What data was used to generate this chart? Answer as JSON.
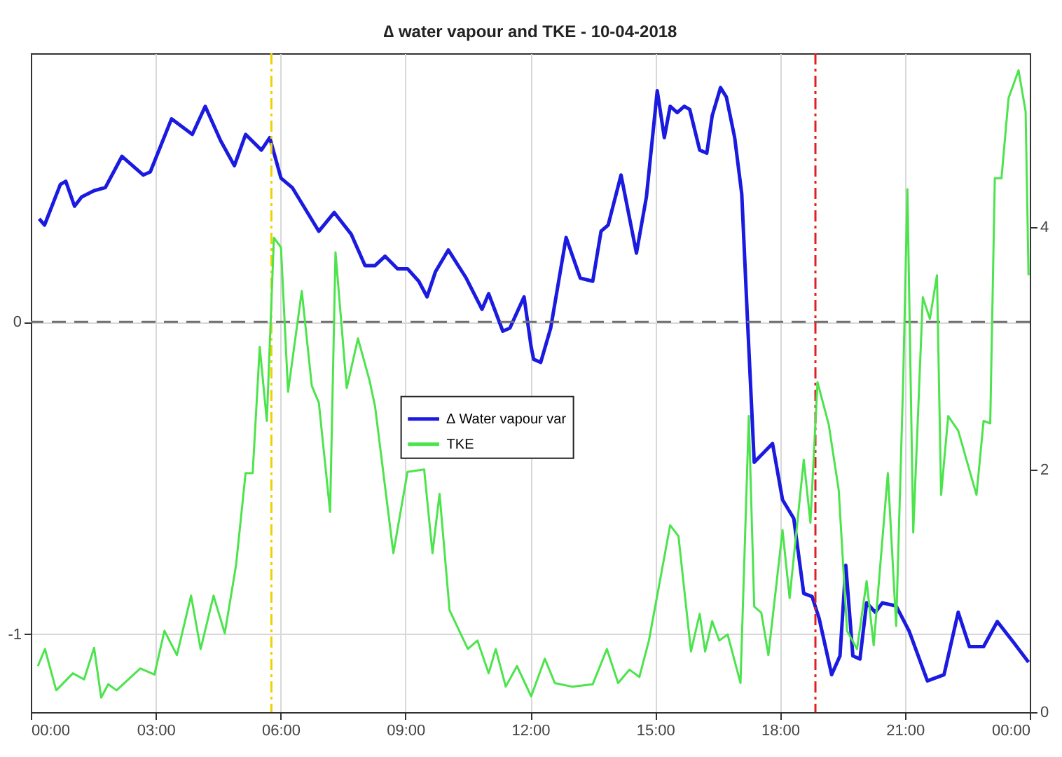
{
  "chart_data": {
    "type": "line",
    "title": "∆ water vapour and TKE - 10-04-2018",
    "xlim": [
      0,
      24
    ],
    "xticks": [
      {
        "value": 0,
        "label": "00:00"
      },
      {
        "value": 3,
        "label": "03:00"
      },
      {
        "value": 6,
        "label": "06:00"
      },
      {
        "value": 9,
        "label": "09:00"
      },
      {
        "value": 12,
        "label": "12:00"
      },
      {
        "value": 15,
        "label": "15:00"
      },
      {
        "value": 18,
        "label": "18:00"
      },
      {
        "value": 21,
        "label": "21:00"
      },
      {
        "value": 24,
        "label": "00:00"
      }
    ],
    "ylim": [
      -1.25,
      0.86
    ],
    "yticks": [
      -1,
      0
    ],
    "y2lim": [
      0,
      5.43
    ],
    "y2ticks": [
      0,
      2,
      4
    ],
    "grid": true,
    "legend": "center",
    "line_style": "solid",
    "series": [
      {
        "name": "∆ Water vapour var",
        "color": "#1a1ae0",
        "x": [
          0.2,
          0.33,
          0.71,
          0.84,
          1.05,
          1.22,
          1.52,
          1.79,
          2.19,
          2.7,
          2.87,
          3.38,
          3.88,
          4.19,
          4.56,
          4.89,
          5.16,
          5.54,
          5.74,
          6.01,
          6.28,
          6.92,
          7.29,
          7.7,
          8.03,
          8.27,
          8.51,
          8.81,
          9.05,
          9.32,
          9.52,
          9.72,
          10.03,
          10.46,
          10.84,
          11.0,
          11.34,
          11.51,
          11.85,
          12.02,
          12.08,
          12.25,
          12.49,
          12.86,
          13.2,
          13.5,
          13.7,
          13.87,
          14.18,
          14.55,
          14.79,
          15.05,
          15.22,
          15.36,
          15.53,
          15.7,
          15.83,
          16.07,
          16.24,
          16.37,
          16.57,
          16.71,
          16.91,
          17.08,
          17.22,
          17.38,
          17.82,
          18.06,
          18.33,
          18.57,
          18.77,
          18.94,
          19.24,
          19.44,
          19.58,
          19.75,
          19.92,
          20.08,
          20.29,
          20.46,
          20.79,
          21.1,
          21.54,
          21.94,
          22.28,
          22.55,
          22.89,
          23.22,
          23.63,
          23.97
        ],
        "values": [
          0.33,
          0.31,
          0.44,
          0.45,
          0.37,
          0.4,
          0.42,
          0.43,
          0.53,
          0.47,
          0.48,
          0.65,
          0.6,
          0.69,
          0.58,
          0.5,
          0.6,
          0.55,
          0.59,
          0.46,
          0.43,
          0.29,
          0.35,
          0.28,
          0.18,
          0.18,
          0.21,
          0.17,
          0.17,
          0.13,
          0.08,
          0.16,
          0.23,
          0.14,
          0.04,
          0.09,
          -0.03,
          -0.02,
          0.08,
          -0.08,
          -0.12,
          -0.13,
          -0.02,
          0.27,
          0.14,
          0.13,
          0.29,
          0.31,
          0.47,
          0.22,
          0.4,
          0.74,
          0.59,
          0.69,
          0.67,
          0.69,
          0.68,
          0.55,
          0.54,
          0.66,
          0.75,
          0.72,
          0.59,
          0.41,
          0.0,
          -0.45,
          -0.39,
          -0.57,
          -0.63,
          -0.87,
          -0.88,
          -0.95,
          -1.13,
          -1.07,
          -0.78,
          -1.07,
          -1.08,
          -0.9,
          -0.93,
          -0.9,
          -0.91,
          -0.99,
          -1.15,
          -1.13,
          -0.93,
          -1.04,
          -1.04,
          -0.96,
          -1.03,
          -1.09
        ]
      },
      {
        "name": "TKE",
        "color": "#4ce44c",
        "axis": "y2",
        "x": [
          0.17,
          0.34,
          0.61,
          1.01,
          1.28,
          1.52,
          1.69,
          1.86,
          2.06,
          2.63,
          2.97,
          3.21,
          3.51,
          3.85,
          4.08,
          4.39,
          4.66,
          4.93,
          5.16,
          5.33,
          5.5,
          5.67,
          5.84,
          6.01,
          6.18,
          6.51,
          6.75,
          6.92,
          7.19,
          7.32,
          7.59,
          7.86,
          8.14,
          8.27,
          8.71,
          9.05,
          9.45,
          9.65,
          9.82,
          10.06,
          10.5,
          10.73,
          11.0,
          11.17,
          11.41,
          11.68,
          12.02,
          12.35,
          12.59,
          13.0,
          13.5,
          13.84,
          14.11,
          14.38,
          14.62,
          14.85,
          15.36,
          15.56,
          15.86,
          16.07,
          16.2,
          16.37,
          16.54,
          16.74,
          17.05,
          17.25,
          17.38,
          17.55,
          17.72,
          18.06,
          18.23,
          18.57,
          18.73,
          18.9,
          19.17,
          19.41,
          19.61,
          19.85,
          20.08,
          20.25,
          20.59,
          20.79,
          20.96,
          21.06,
          21.2,
          21.43,
          21.6,
          21.77,
          21.87,
          22.04,
          22.28,
          22.72,
          22.89,
          23.05,
          23.16,
          23.32,
          23.49,
          23.73,
          23.9,
          23.97
        ],
        "values": [
          0.38,
          0.52,
          0.18,
          0.32,
          0.27,
          0.53,
          0.12,
          0.23,
          0.18,
          0.36,
          0.31,
          0.67,
          0.47,
          0.96,
          0.52,
          0.96,
          0.65,
          1.21,
          1.97,
          1.97,
          3.01,
          2.4,
          3.91,
          3.83,
          2.64,
          3.47,
          2.69,
          2.55,
          1.65,
          3.79,
          2.67,
          3.08,
          2.73,
          2.52,
          1.31,
          1.98,
          2.0,
          1.31,
          1.8,
          0.84,
          0.52,
          0.59,
          0.32,
          0.52,
          0.21,
          0.38,
          0.13,
          0.44,
          0.24,
          0.21,
          0.23,
          0.52,
          0.24,
          0.35,
          0.29,
          0.59,
          1.54,
          1.45,
          0.5,
          0.81,
          0.5,
          0.75,
          0.59,
          0.64,
          0.24,
          2.44,
          0.87,
          0.82,
          0.47,
          1.5,
          0.94,
          2.08,
          1.56,
          2.72,
          2.37,
          1.83,
          0.67,
          0.52,
          1.08,
          0.55,
          1.97,
          0.71,
          2.75,
          4.31,
          1.48,
          3.42,
          3.24,
          3.6,
          1.79,
          2.44,
          2.32,
          1.79,
          2.4,
          2.38,
          4.4,
          4.4,
          5.06,
          5.29,
          4.95,
          3.6
        ]
      }
    ],
    "ref_lines": [
      {
        "axis": "y",
        "value": 0,
        "color": "#707070",
        "line_style": "dashed"
      },
      {
        "axis": "x",
        "value": 5.78,
        "color": "#f0d000",
        "line_style": "dashdot"
      },
      {
        "axis": "x",
        "value": 18.85,
        "color": "#e02020",
        "line_style": "dashdot"
      }
    ]
  }
}
